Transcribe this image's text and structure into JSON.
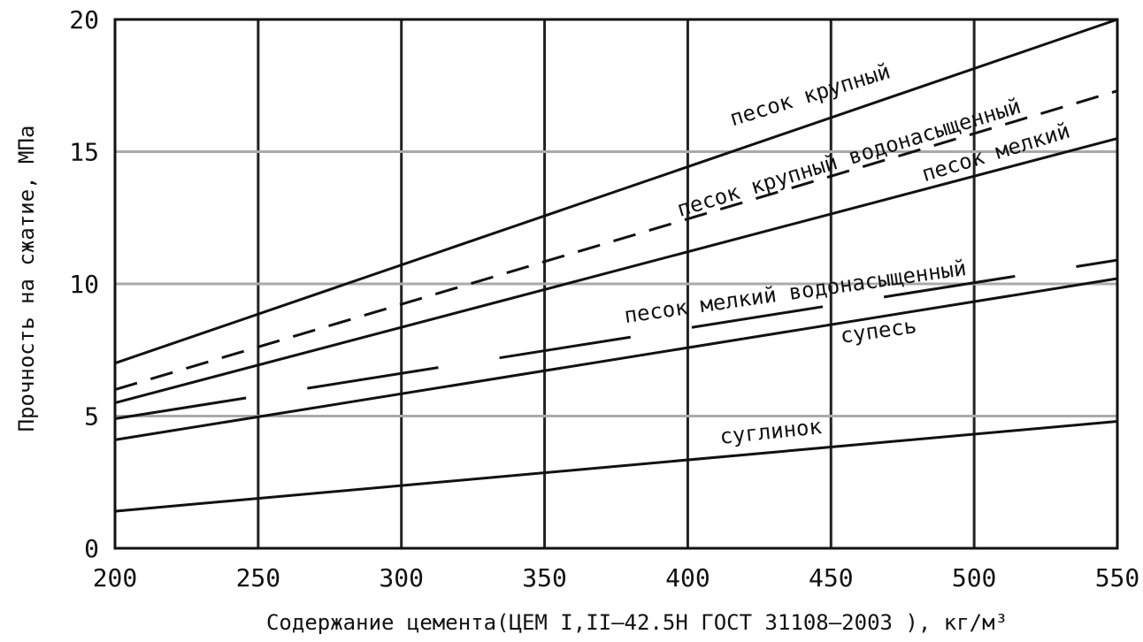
{
  "chart_data": {
    "type": "line",
    "title": "",
    "xlabel": "Содержание цемента(ЦЕМ I,II–42.5Н ГОСТ 31108–2003 ), кг/м³",
    "ylabel": "Прочность на сжатие, МПа",
    "xlim": [
      200,
      550
    ],
    "ylim": [
      0,
      20
    ],
    "x_ticks": [
      "200",
      "250",
      "300",
      "350",
      "400",
      "450",
      "500",
      "550"
    ],
    "y_ticks": [
      "0",
      "5",
      "10",
      "15",
      "20"
    ],
    "grid": true,
    "colors": {
      "line": "#111111",
      "grid": "#222222",
      "grid_minor": "#aaaaaa"
    },
    "series": [
      {
        "name": "песок крупный",
        "style": "solid",
        "x": [
          200,
          550
        ],
        "y": [
          7.0,
          20.0
        ]
      },
      {
        "name": "песок крупный водонасыщенный",
        "style": "dashed",
        "x": [
          200,
          550
        ],
        "y": [
          6.0,
          17.3
        ]
      },
      {
        "name": "песок мелкий",
        "style": "solid",
        "x": [
          200,
          550
        ],
        "y": [
          5.5,
          15.5
        ]
      },
      {
        "name": "песок мелкий водонасыщенный",
        "style": "dashed-long",
        "x": [
          200,
          550
        ],
        "y": [
          4.9,
          10.9
        ]
      },
      {
        "name": "супесь",
        "style": "solid",
        "x": [
          200,
          550
        ],
        "y": [
          4.1,
          10.2
        ]
      },
      {
        "name": "суглинок",
        "style": "solid",
        "x": [
          200,
          550
        ],
        "y": [
          1.4,
          4.8
        ]
      }
    ]
  }
}
